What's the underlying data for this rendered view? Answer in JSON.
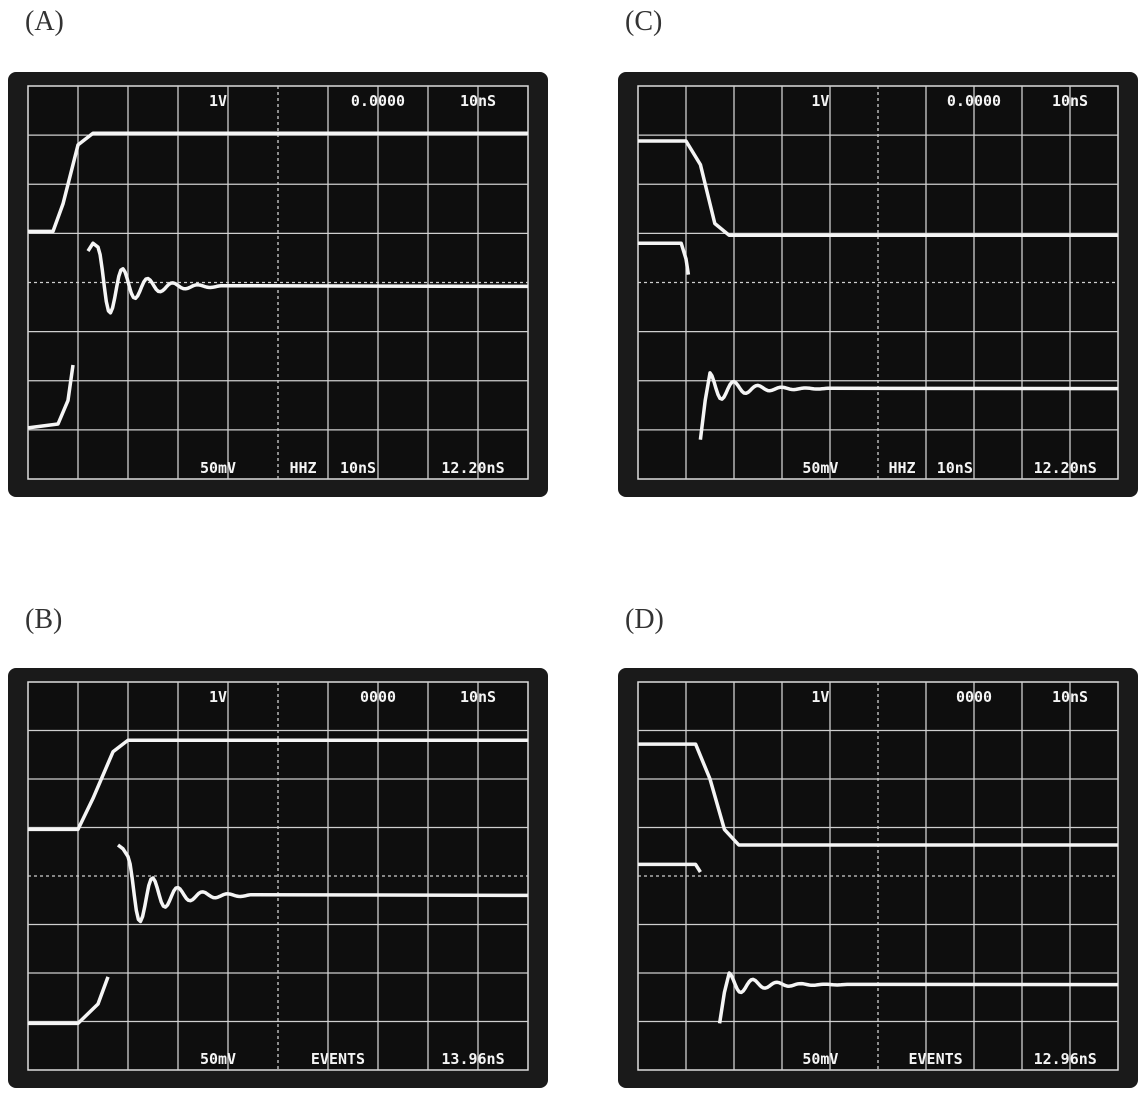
{
  "panels": [
    {
      "label": "(A)",
      "top": [
        "1V",
        "0.0000",
        "10nS"
      ],
      "bottom": [
        "50mV",
        "HHZ",
        "10nS",
        "12.20nS"
      ]
    },
    {
      "label": "(C)",
      "top": [
        "1V",
        "0.0000",
        "10nS"
      ],
      "bottom": [
        "50mV",
        "HHZ",
        "10nS",
        "12.20nS"
      ]
    },
    {
      "label": "(B)",
      "top": [
        "1V",
        "0000",
        "10nS"
      ],
      "bottom": [
        "50mV",
        "EVENTS",
        "13.96nS"
      ]
    },
    {
      "label": "(D)",
      "top": [
        "1V",
        "0000",
        "10nS"
      ],
      "bottom": [
        "50mV",
        "EVENTS",
        "12.96nS"
      ]
    }
  ]
}
